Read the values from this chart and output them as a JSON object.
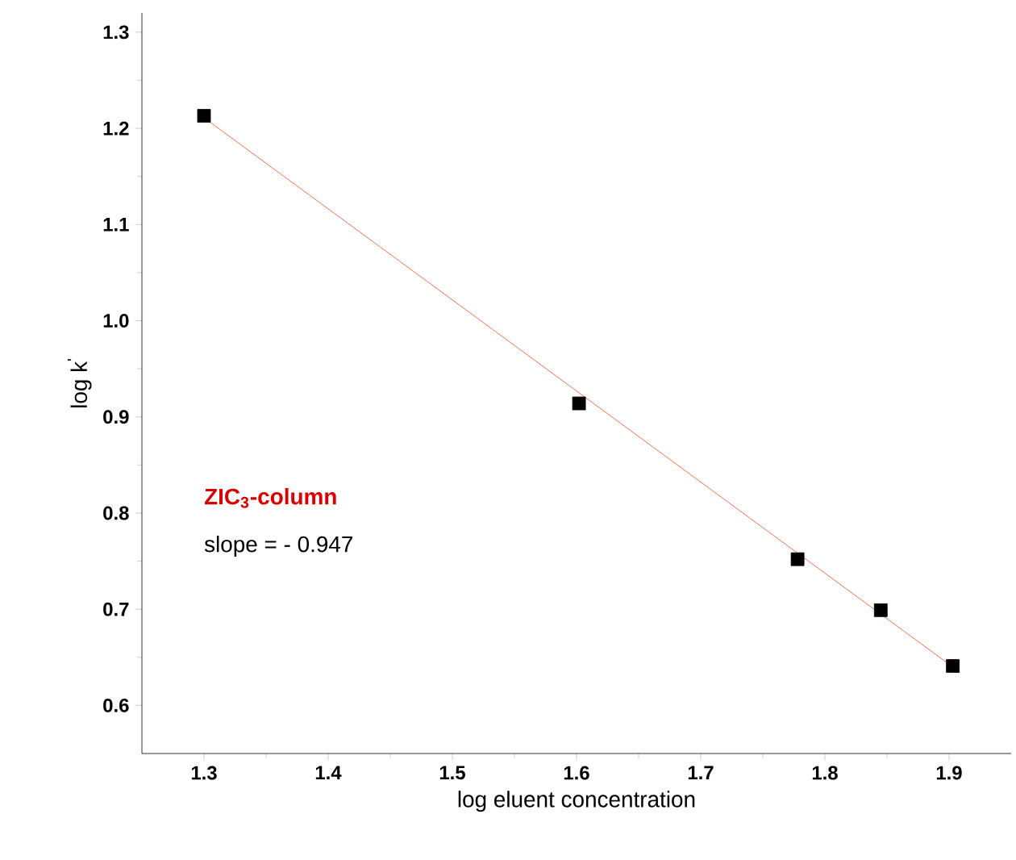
{
  "chart_data": {
    "type": "scatter",
    "xlabel": "log eluent concentration",
    "ylabel": "log k$^{'}$",
    "annotations": [
      "**ZIC$_{3}$-column**",
      "slope = - 0.947"
    ],
    "xlim": [
      1.25,
      1.95
    ],
    "xticks": [
      1.3,
      1.4,
      1.5,
      1.6,
      1.7,
      1.8,
      1.9
    ],
    "ylim": [
      0.55,
      1.32
    ],
    "yticks": [
      0.6,
      0.7,
      0.8,
      0.9,
      {
        "value": 1.0,
        "label": "1.0"
      },
      1.1,
      1.2,
      1.3
    ],
    "grid": false,
    "series": [
      {
        "type": "line",
        "color": "#e8502a",
        "marker": "none",
        "x": [
          1.3,
          1.903
        ],
        "values": [
          1.211,
          0.64
        ]
      },
      {
        "color": "#000000",
        "marker": "square",
        "x": [
          1.3,
          1.602,
          1.778,
          1.845,
          1.903
        ],
        "values": [
          1.213,
          0.914,
          0.752,
          0.699,
          0.641
        ]
      }
    ]
  }
}
